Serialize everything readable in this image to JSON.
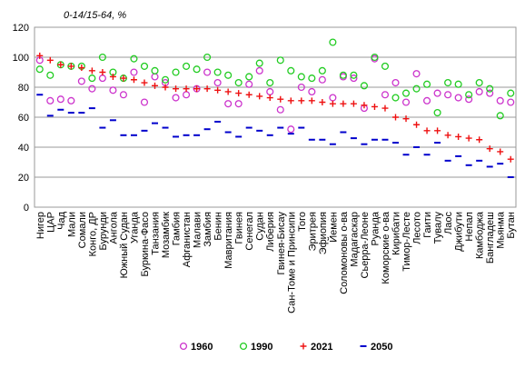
{
  "chart_data": {
    "type": "scatter",
    "title": "0-14/15-64, %",
    "xlabel": "",
    "ylabel": "",
    "ylim": [
      0,
      120
    ],
    "yticks": [
      0,
      20,
      40,
      60,
      80,
      100,
      120
    ],
    "grid": true,
    "legend_position": "bottom",
    "categories": [
      "Нигер",
      "ЦАР",
      "Чад",
      "Мали",
      "Сомали",
      "Конго, ДР",
      "Бурунди",
      "Ангола",
      "Южный Судан",
      "Уганда",
      "Буркина-Фасо",
      "Танзания",
      "Мозамбик",
      "Гамбия",
      "Афганистан",
      "Малави",
      "Замбия",
      "Бенин",
      "Мавритания",
      "Гвинея",
      "Сенегал",
      "Судан",
      "Либерия",
      "Гвинея-Бисау",
      "Сан-Томе и Принсипи",
      "Того",
      "Эритрея",
      "Эфиопия",
      "Йемен",
      "Соломоновы о-ва",
      "Мадагаскар",
      "Сьерра-Леоне",
      "Руанда",
      "Коморские о-ва",
      "Кирибати",
      "Тимор-Лесте",
      "Лесото",
      "Гаити",
      "Тувалу",
      "Лаос",
      "Джибути",
      "Непал",
      "Камбоджа",
      "Бангладеш",
      "Мьянма",
      "Бутан"
    ],
    "series": [
      {
        "name": "1960",
        "color": "#cc33cc",
        "marker": "circle",
        "values": [
          98,
          71,
          72,
          71,
          84,
          79,
          86,
          78,
          75,
          90,
          70,
          87,
          83,
          73,
          75,
          79,
          90,
          83,
          69,
          69,
          82,
          91,
          77,
          65,
          52,
          80,
          77,
          85,
          73,
          87,
          86,
          66,
          99,
          75,
          83,
          70,
          89,
          71,
          76,
          75,
          73,
          72,
          77,
          76,
          71,
          70
        ]
      },
      {
        "name": "1990",
        "color": "#22cc22",
        "marker": "circle",
        "values": [
          92,
          88,
          95,
          94,
          94,
          86,
          100,
          90,
          86,
          99,
          94,
          91,
          85,
          90,
          94,
          92,
          100,
          90,
          88,
          83,
          87,
          96,
          83,
          98,
          91,
          87,
          86,
          91,
          110,
          88,
          88,
          81,
          100,
          94,
          73,
          76,
          79,
          82,
          63,
          83,
          82,
          75,
          83,
          79,
          61,
          76
        ]
      },
      {
        "name": "2021",
        "color": "#ee1111",
        "marker": "plus",
        "values": [
          101,
          98,
          95,
          94,
          93,
          91,
          90,
          87,
          86,
          85,
          83,
          81,
          80,
          79,
          79,
          79,
          79,
          78,
          77,
          76,
          75,
          74,
          73,
          72,
          71,
          71,
          71,
          70,
          69,
          69,
          69,
          68,
          67,
          66,
          60,
          59,
          55,
          51,
          51,
          48,
          47,
          46,
          45,
          39,
          37,
          32
        ]
      },
      {
        "name": "2050",
        "color": "#0000cc",
        "marker": "dash",
        "values": [
          75,
          61,
          65,
          63,
          63,
          66,
          53,
          58,
          48,
          48,
          51,
          56,
          53,
          47,
          48,
          48,
          52,
          57,
          50,
          47,
          53,
          51,
          48,
          53,
          49,
          53,
          45,
          45,
          42,
          50,
          46,
          42,
          45,
          45,
          43,
          35,
          40,
          35,
          43,
          31,
          34,
          28,
          31,
          27,
          29,
          20
        ]
      }
    ]
  }
}
